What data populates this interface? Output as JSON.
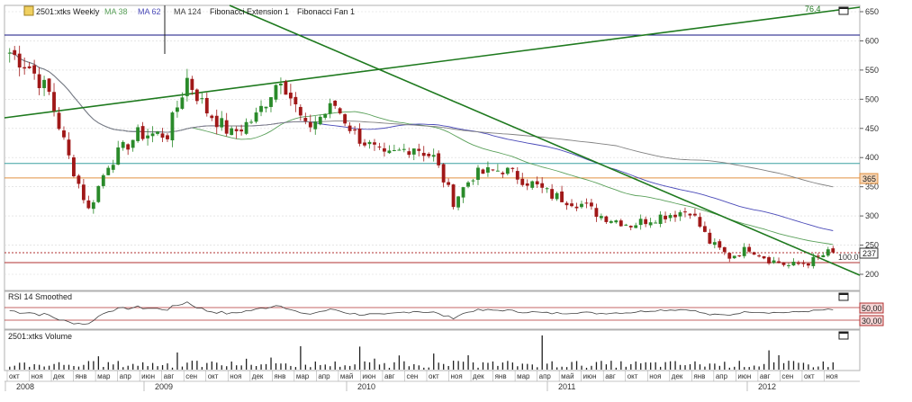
{
  "main_panel": {
    "legend": {
      "symbol": "2501:xtks Weekly",
      "ma38": "MA 38",
      "ma62": "MA 62",
      "ma124": "MA 124",
      "fib_ext": "Fibonacci Extension 1",
      "fib_fan": "Fibonacci Fan 1"
    },
    "labels": {
      "fan_top": "76.4",
      "fib_100": "100.0",
      "price_box": "237",
      "orange_box": "365"
    }
  },
  "rsi_panel": {
    "title": "RSI 14 Smoothed",
    "level_high": "50,00",
    "level_low": "30,00"
  },
  "volume_panel": {
    "title": "2501:xtks Volume"
  },
  "colors": {
    "up": "#2a8a2a",
    "down": "#a01818",
    "ma38": "#5aa05a",
    "ma62": "#4a4ab8",
    "ma124": "#808080",
    "fib_green": "#1f7a1f",
    "navy_line": "#101080",
    "teal_line": "#3aa0a0",
    "orange_line": "#e09040",
    "red_line": "#b03030",
    "grid": "#d8d8d8"
  },
  "chart_data": {
    "type": "candlestick",
    "period": "weekly",
    "y_axis_ticks": [
      200,
      250,
      300,
      350,
      400,
      450,
      500,
      550,
      600,
      650
    ],
    "ylim": [
      180,
      660
    ],
    "month_labels": [
      "окт",
      "ноя",
      "дек",
      "янв",
      "мар",
      "апр",
      "июн",
      "авг",
      "сен",
      "окт",
      "ноя",
      "дек",
      "янв",
      "мар",
      "апр",
      "май",
      "июн",
      "авг",
      "сен",
      "окт",
      "ноя",
      "дек",
      "янв",
      "мар",
      "апр",
      "май",
      "июн",
      "авг",
      "окт",
      "ноя",
      "дек",
      "янв",
      "апр",
      "июн",
      "авг",
      "сен",
      "окт",
      "ноя"
    ],
    "year_labels": [
      "2008",
      "2009",
      "2010",
      "2011",
      "2012"
    ],
    "horizontal_levels": [
      {
        "value": 610
      },
      {
        "value": 390
      },
      {
        "value": 365,
        "label": "365"
      },
      {
        "value": 237,
        "label": "237"
      },
      {
        "value": 220,
        "label": "100.0"
      }
    ],
    "price_anchors": [
      [
        0,
        580
      ],
      [
        4,
        555
      ],
      [
        8,
        510
      ],
      [
        12,
        400
      ],
      [
        16,
        310
      ],
      [
        20,
        390
      ],
      [
        26,
        440
      ],
      [
        32,
        440
      ],
      [
        36,
        535
      ],
      [
        40,
        480
      ],
      [
        45,
        440
      ],
      [
        50,
        470
      ],
      [
        55,
        540
      ],
      [
        60,
        450
      ],
      [
        66,
        490
      ],
      [
        70,
        440
      ],
      [
        76,
        400
      ],
      [
        82,
        420
      ],
      [
        86,
        400
      ],
      [
        90,
        325
      ],
      [
        94,
        370
      ],
      [
        100,
        380
      ],
      [
        106,
        355
      ],
      [
        110,
        335
      ],
      [
        116,
        320
      ],
      [
        120,
        300
      ],
      [
        126,
        285
      ],
      [
        132,
        300
      ],
      [
        138,
        310
      ],
      [
        142,
        255
      ],
      [
        146,
        230
      ],
      [
        150,
        245
      ],
      [
        154,
        225
      ],
      [
        158,
        215
      ],
      [
        162,
        220
      ],
      [
        166,
        237
      ]
    ],
    "rsi_levels": [
      50,
      30
    ],
    "volume_peak_week": 108
  }
}
